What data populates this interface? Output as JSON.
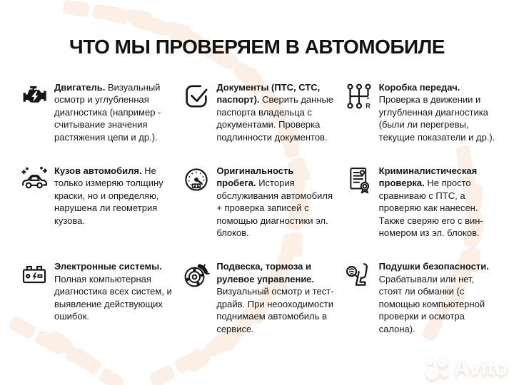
{
  "title": "ЧТО МЫ ПРОВЕРЯЕМ В АВТОМОБИЛЕ",
  "items": [
    {
      "icon": "engine-icon",
      "lead": "Двигатель.",
      "body": "Визуальный осмотр и углубленная диагностика (например - считывание значения растяжения цепи и др.)."
    },
    {
      "icon": "documents-check-icon",
      "lead": "Документы (ПТС, СТС, паспорт).",
      "body": "Сверить данные паспорта владельца с документами. Проверка подлинности документов."
    },
    {
      "icon": "gearbox-icon",
      "lead": "Коробка передач.",
      "body": "Проверка в движении и углубленная диагностика (были ли перегревы, текущие показатели и др.)."
    },
    {
      "icon": "car-body-icon",
      "lead": "Кузов автомобиля.",
      "body": "Не только измеряю толщину краски, но и определяю, нарушена ли геометрия кузова."
    },
    {
      "icon": "odometer-icon",
      "lead": "Оригинальность пробега.",
      "body": "История обслуживания автомобиля + проверка записей с помощью диагностики эл. блоков."
    },
    {
      "icon": "forensic-document-icon",
      "lead": "Криминалистическая проверка.",
      "body": "Не просто сравниваю с ПТС, а проверяю как нанесен. Также сверяю его с вин-номером из эл. блоков."
    },
    {
      "icon": "battery-icon",
      "lead": "Электронные системы.",
      "body": "Полная компьютерная диагностика всех систем, и выявление действующих ошибок."
    },
    {
      "icon": "brake-disc-icon",
      "lead": "Подвеска, тормоза и рулевое управление.",
      "body": "Визуальный осмотр и тест-драйв. При неооходимости поднимаем автомобиль в сервисе."
    },
    {
      "icon": "airbag-icon",
      "lead": "Подушки безопасности.",
      "body": "Срабатывали или нет, стоят ли обманки (с помощью компьютерной проверки и осмотра салона)."
    }
  ],
  "watermark": {
    "label": "Avito"
  },
  "colors": {
    "background": "#ffffff",
    "text": "#161616",
    "tire_pattern": "#f8e2d2",
    "watermark": "#ffffff"
  }
}
